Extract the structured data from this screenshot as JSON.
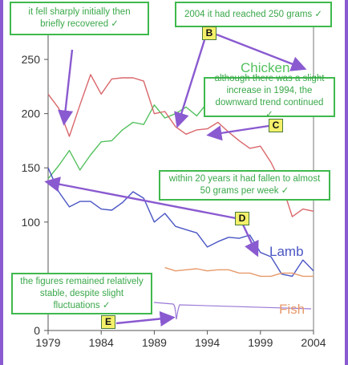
{
  "chart_data": {
    "type": "line",
    "x": [
      1979,
      1980,
      1981,
      1982,
      1983,
      1984,
      1985,
      1986,
      1987,
      1988,
      1989,
      1990,
      1991,
      1992,
      1993,
      1994,
      1995,
      1996,
      1997,
      1998,
      1999,
      2000,
      2001,
      2002,
      2003,
      2004
    ],
    "xticks": [
      1979,
      1984,
      1989,
      1994,
      1999,
      2004
    ],
    "yticks": [
      0,
      50,
      100,
      150,
      200,
      250
    ],
    "xlim": [
      1979,
      2004
    ],
    "ylim": [
      0,
      290
    ],
    "series": [
      {
        "name": "Chicken",
        "color": "#54c15e",
        "values": [
          140,
          152,
          166,
          148,
          162,
          174,
          175,
          185,
          192,
          190,
          208,
          196,
          200,
          206,
          198,
          210,
          228,
          null,
          null,
          null,
          null,
          null,
          null,
          null,
          null,
          null
        ]
      },
      {
        "name": "",
        "color": "#d9676b",
        "values": [
          218,
          205,
          179,
          208,
          236,
          218,
          232,
          233,
          233,
          230,
          200,
          202,
          188,
          181,
          185,
          186,
          192,
          183,
          175,
          168,
          170,
          155,
          135,
          105,
          112,
          110
        ]
      },
      {
        "name": "Lamb",
        "color": "#4a56c4",
        "values": [
          150,
          128,
          114,
          119,
          119,
          112,
          111,
          118,
          128,
          122,
          100,
          108,
          96,
          93,
          90,
          77,
          82,
          86,
          85,
          88,
          72,
          68,
          52,
          50,
          65,
          55
        ]
      },
      {
        "name": "Fish",
        "color": "#e79a6b",
        "values": [
          null,
          null,
          null,
          null,
          null,
          null,
          null,
          null,
          null,
          null,
          null,
          58,
          55,
          56,
          57,
          55,
          56,
          56,
          53,
          53,
          50,
          50,
          53,
          53,
          50,
          50
        ]
      },
      {
        "name": "",
        "color": "#9b7ad6",
        "values": [
          null,
          null,
          null,
          null,
          null,
          null,
          null,
          null,
          null,
          null,
          null,
          null,
          null,
          null,
          null,
          null,
          null,
          null,
          null,
          null,
          null,
          null,
          null,
          null,
          null,
          null
        ]
      }
    ]
  },
  "annotations": [
    {
      "id": "note-initial",
      "text": "it fell sharply initially then briefly recovered ✓"
    },
    {
      "id": "note-2004",
      "text": "2004 it had reached 250 grams ✓"
    },
    {
      "id": "note-1994",
      "text": "although there was a slight increase in 1994, the downward trend continued ✓"
    },
    {
      "id": "note-20years",
      "text": "within 20 years it had fallen to almost 50 grams per week ✓"
    },
    {
      "id": "note-stable",
      "text": "the figures remained relatively stable, despite slight fluctuations ✓"
    }
  ],
  "markers": {
    "b": "B",
    "c": "C",
    "d": "D",
    "e": "E"
  },
  "colors": {
    "arrow": "#8a5ad0",
    "note_border": "#3fb94d",
    "marker_fill": "#f4f06a"
  }
}
